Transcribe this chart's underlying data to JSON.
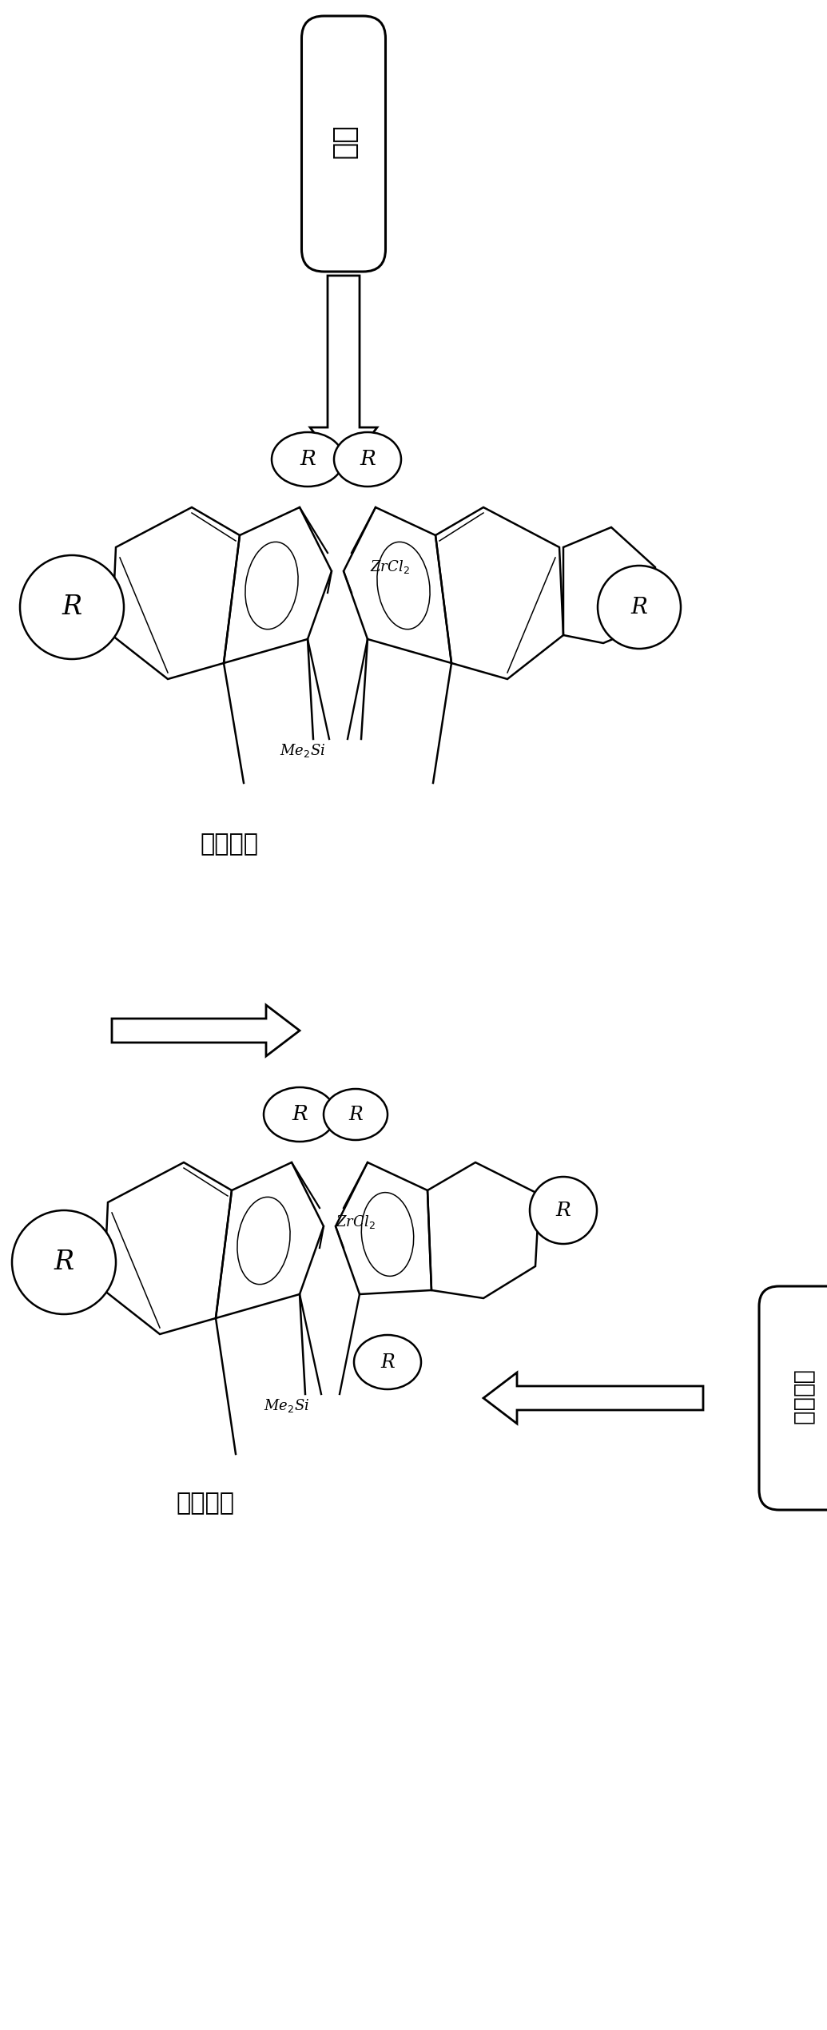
{
  "bg_color": "#ffffff",
  "label_top_box": "位阰",
  "label_bottom_box": "没有位阰",
  "label_meso": "内消旋：",
  "label_racemic": "外消旋：",
  "label_ZrCl2": "ZrCl$_2$",
  "label_Me2Si": "Me$_2$Si",
  "label_R": "R",
  "line_color": "#000000",
  "fig_width": 10.35,
  "fig_height": 25.41,
  "dpi": 100
}
